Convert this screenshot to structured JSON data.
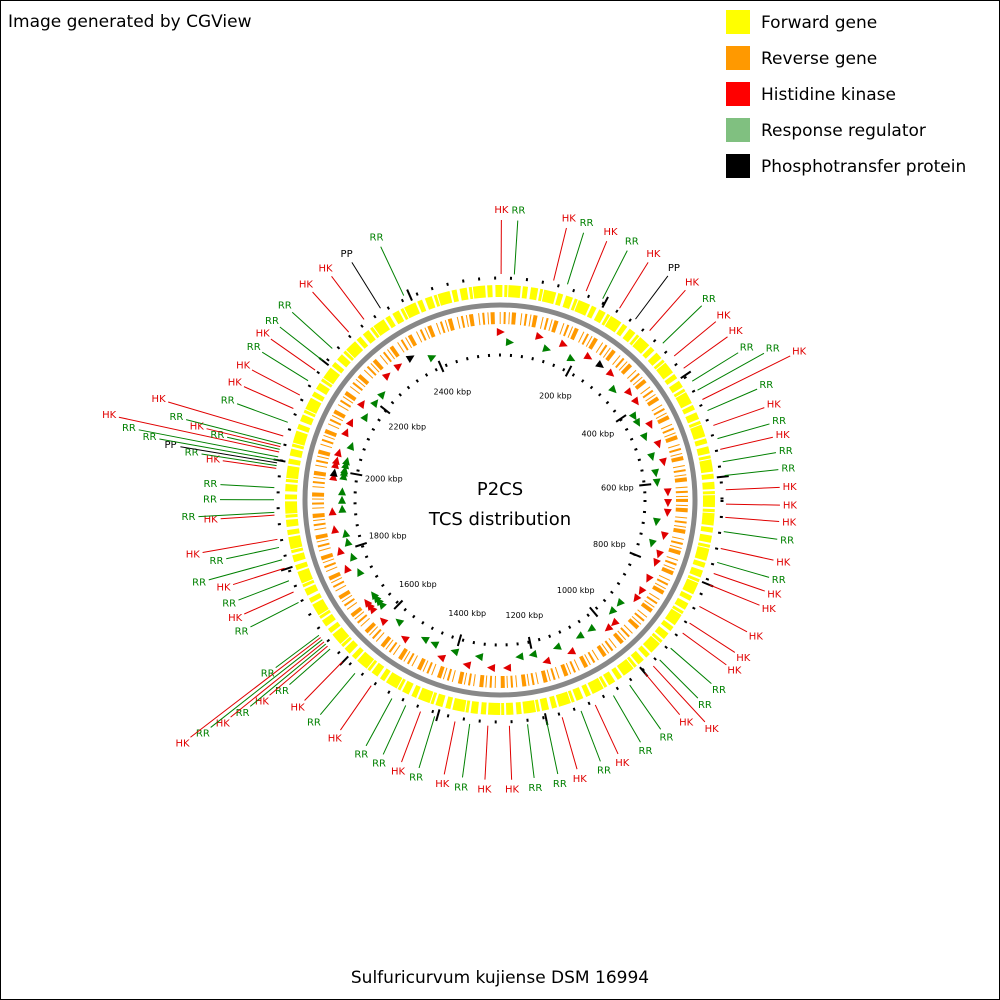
{
  "header": {
    "title": "Image generated by CGView"
  },
  "legend": [
    {
      "label": "Forward gene",
      "color": "#ffff00"
    },
    {
      "label": "Reverse gene",
      "color": "#ff9900"
    },
    {
      "label": "Histidine kinase",
      "color": "#ff0000"
    },
    {
      "label": "Response regulator",
      "color": "#80c080"
    },
    {
      "label": "Phosphotransfer protein",
      "color": "#000000"
    }
  ],
  "center": {
    "title": "P2CS",
    "subtitle": "TCS distribution"
  },
  "footer": {
    "title": "Sulfuricurvum kujiense DSM 16994"
  },
  "map": {
    "length_kbp": 2570,
    "ticks": [
      {
        "value": 200,
        "label": "200 kbp"
      },
      {
        "value": 400,
        "label": "400 kbp"
      },
      {
        "value": 600,
        "label": "600 kbp"
      },
      {
        "value": 800,
        "label": "800 kbp"
      },
      {
        "value": 1000,
        "label": "1000 kbp"
      },
      {
        "value": 1200,
        "label": "1200 kbp"
      },
      {
        "value": 1400,
        "label": "1400 kbp"
      },
      {
        "value": 1600,
        "label": "1600 kbp"
      },
      {
        "value": 1800,
        "label": "1800 kbp"
      },
      {
        "value": 2000,
        "label": "2000 kbp"
      },
      {
        "value": 2200,
        "label": "2200 kbp"
      },
      {
        "value": 2400,
        "label": "2400 kbp"
      }
    ]
  },
  "features": {
    "colors": {
      "HK": "#e00000",
      "RR": "#008000",
      "PP": "#000000"
    },
    "items": [
      {
        "label": "HK",
        "kbp": 2
      },
      {
        "label": "RR",
        "kbp": 26
      },
      {
        "label": "HK",
        "kbp": 98
      },
      {
        "label": "RR",
        "kbp": 124
      },
      {
        "label": "HK",
        "kbp": 160
      },
      {
        "label": "RR",
        "kbp": 193
      },
      {
        "label": "HK",
        "kbp": 228
      },
      {
        "label": "PP",
        "kbp": 263
      },
      {
        "label": "HK",
        "kbp": 296
      },
      {
        "label": "RR",
        "kbp": 329
      },
      {
        "label": "HK",
        "kbp": 360
      },
      {
        "label": "HK",
        "kbp": 388
      },
      {
        "label": "RR",
        "kbp": 416
      },
      {
        "label": "RR",
        "kbp": 435
      },
      {
        "label": "HK",
        "kbp": 454
      },
      {
        "label": "RR",
        "kbp": 476
      },
      {
        "label": "HK",
        "kbp": 505
      },
      {
        "label": "RR",
        "kbp": 530
      },
      {
        "label": "HK",
        "kbp": 550
      },
      {
        "label": "RR",
        "kbp": 573
      },
      {
        "label": "RR",
        "kbp": 598
      },
      {
        "label": "HK",
        "kbp": 624
      },
      {
        "label": "HK",
        "kbp": 650
      },
      {
        "label": "HK",
        "kbp": 674
      },
      {
        "label": "RR",
        "kbp": 700
      },
      {
        "label": "HK",
        "kbp": 731
      },
      {
        "label": "RR",
        "kbp": 757
      },
      {
        "label": "HK",
        "kbp": 778
      },
      {
        "label": "HK",
        "kbp": 800
      },
      {
        "label": "HK",
        "kbp": 843
      },
      {
        "label": "HK",
        "kbp": 878
      },
      {
        "label": "HK",
        "kbp": 900
      },
      {
        "label": "RR",
        "kbp": 935
      },
      {
        "label": "RR",
        "kbp": 964
      },
      {
        "label": "HK",
        "kbp": 980
      },
      {
        "label": "HK",
        "kbp": 1000
      },
      {
        "label": "RR",
        "kbp": 1035
      },
      {
        "label": "RR",
        "kbp": 1070
      },
      {
        "label": "HK",
        "kbp": 1107
      },
      {
        "label": "RR",
        "kbp": 1135
      },
      {
        "label": "HK",
        "kbp": 1171
      },
      {
        "label": "RR",
        "kbp": 1200
      },
      {
        "label": "RR",
        "kbp": 1235
      },
      {
        "label": "HK",
        "kbp": 1268
      },
      {
        "label": "HK",
        "kbp": 1307
      },
      {
        "label": "RR",
        "kbp": 1340
      },
      {
        "label": "HK",
        "kbp": 1367
      },
      {
        "label": "RR",
        "kbp": 1405
      },
      {
        "label": "HK",
        "kbp": 1432
      },
      {
        "label": "RR",
        "kbp": 1461
      },
      {
        "label": "RR",
        "kbp": 1489
      },
      {
        "label": "HK",
        "kbp": 1533
      },
      {
        "label": "RR",
        "kbp": 1570
      },
      {
        "label": "HK",
        "kbp": 1601
      },
      {
        "label": "RR",
        "kbp": 1633
      },
      {
        "label": "HK",
        "kbp": 1640
      },
      {
        "label": "RR",
        "kbp": 1645
      },
      {
        "label": "HK",
        "kbp": 1650
      },
      {
        "label": "RR",
        "kbp": 1655
      },
      {
        "label": "HK",
        "kbp": 1660
      },
      {
        "label": "RR",
        "kbp": 1665
      },
      {
        "label": "RR",
        "kbp": 1735
      },
      {
        "label": "HK",
        "kbp": 1756
      },
      {
        "label": "RR",
        "kbp": 1778
      },
      {
        "label": "HK",
        "kbp": 1802
      },
      {
        "label": "RR",
        "kbp": 1818
      },
      {
        "label": "RR",
        "kbp": 1841
      },
      {
        "label": "HK",
        "kbp": 1856
      },
      {
        "label": "HK",
        "kbp": 1900
      },
      {
        "label": "RR",
        "kbp": 1905
      },
      {
        "label": "RR",
        "kbp": 1928
      },
      {
        "label": "RR",
        "kbp": 1950
      },
      {
        "label": "HK",
        "kbp": 1985
      },
      {
        "label": "RR",
        "kbp": 1990
      },
      {
        "label": "PP",
        "kbp": 1995
      },
      {
        "label": "RR",
        "kbp": 2000
      },
      {
        "label": "RR",
        "kbp": 2006
      },
      {
        "label": "HK",
        "kbp": 2015
      },
      {
        "label": "RR",
        "kbp": 2020
      },
      {
        "label": "HK",
        "kbp": 2025
      },
      {
        "label": "RR",
        "kbp": 2030
      },
      {
        "label": "HK",
        "kbp": 2045
      },
      {
        "label": "RR",
        "kbp": 2071
      },
      {
        "label": "HK",
        "kbp": 2098
      },
      {
        "label": "HK",
        "kbp": 2125
      },
      {
        "label": "RR",
        "kbp": 2155
      },
      {
        "label": "HK",
        "kbp": 2178
      },
      {
        "label": "RR",
        "kbp": 2200
      },
      {
        "label": "RR",
        "kbp": 2228
      },
      {
        "label": "HK",
        "kbp": 2270
      },
      {
        "label": "HK",
        "kbp": 2306
      },
      {
        "label": "PP",
        "kbp": 2342
      },
      {
        "label": "RR",
        "kbp": 2390
      }
    ]
  }
}
